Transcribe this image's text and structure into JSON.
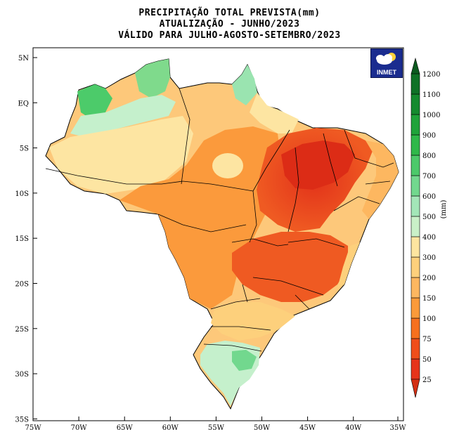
{
  "title": {
    "line1": "PRECIPITAÇÃO TOTAL PREVISTA(mm)",
    "line2": "ATUALIZAÇÃO - JUNHO/2023",
    "line3": "VÁLIDO PARA JULHO-AGOSTO-SETEMBRO/2023"
  },
  "map": {
    "lat_labels": [
      "5N",
      "EQ",
      "5S",
      "10S",
      "15S",
      "20S",
      "25S",
      "30S",
      "35S"
    ],
    "lon_labels": [
      "75W",
      "70W",
      "65W",
      "60W",
      "55W",
      "50W",
      "45W",
      "40W",
      "35W"
    ],
    "logo_text": "INMET"
  },
  "colorbar": {
    "unit": "(mm)",
    "levels": [
      "25",
      "50",
      "75",
      "100",
      "150",
      "200",
      "300",
      "400",
      "500",
      "600",
      "700",
      "800",
      "900",
      "1000",
      "1100",
      "1200"
    ],
    "colors": [
      "#e6331a",
      "#f04e1a",
      "#f6701e",
      "#fb9a3a",
      "#fdb760",
      "#fdd07c",
      "#fde5a0",
      "#c9f0c8",
      "#a3e6b8",
      "#72d88e",
      "#4cc96a",
      "#2fb84a",
      "#1fa33a",
      "#148a2e",
      "#0e7126"
    ],
    "arrow_top_color": "#0b5a1f",
    "arrow_bottom_color": "#d42f14"
  }
}
